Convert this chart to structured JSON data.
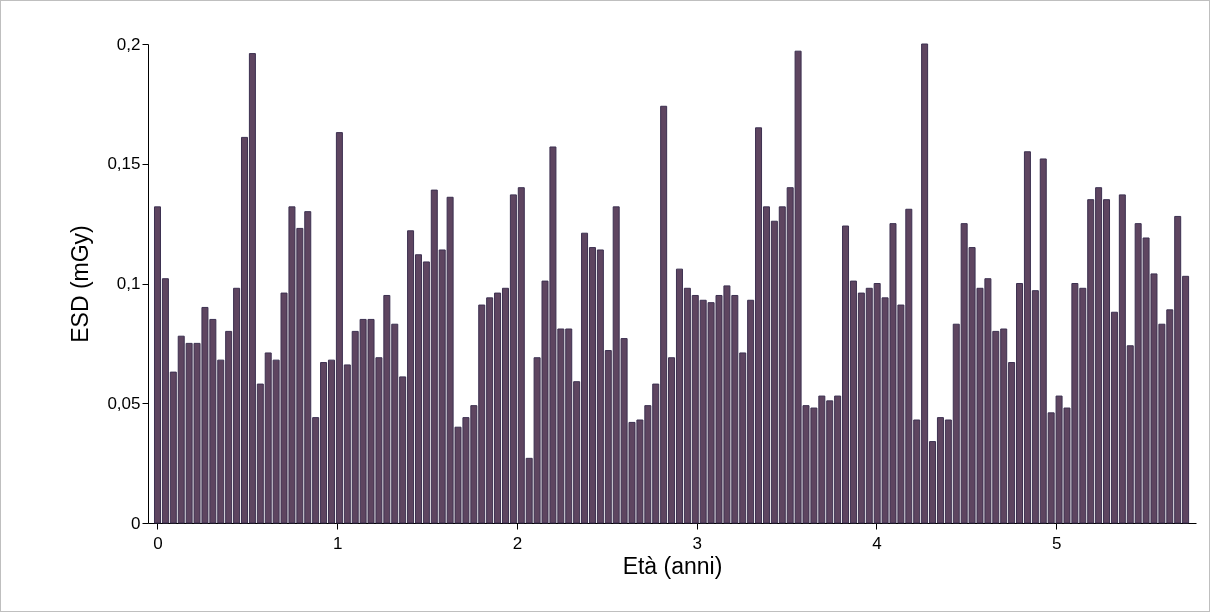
{
  "chart_data": {
    "type": "bar",
    "xlabel": "Età (anni)",
    "ylabel": "ESD (mGy)",
    "x": [
      0,
      0.044,
      0.088,
      0.132,
      0.176,
      0.22,
      0.264,
      0.308,
      0.352,
      0.396,
      0.44,
      0.484,
      0.528,
      0.572,
      0.616,
      0.66,
      0.704,
      0.748,
      0.792,
      0.836,
      0.88,
      0.924,
      0.968,
      1.012,
      1.056,
      1.1,
      1.144,
      1.188,
      1.232,
      1.276,
      1.32,
      1.364,
      1.408,
      1.452,
      1.496,
      1.54,
      1.584,
      1.628,
      1.672,
      1.716,
      1.76,
      1.804,
      1.848,
      1.892,
      1.936,
      1.98,
      2.024,
      2.068,
      2.112,
      2.156,
      2.2,
      2.244,
      2.288,
      2.332,
      2.376,
      2.42,
      2.464,
      2.508,
      2.552,
      2.596,
      2.64,
      2.684,
      2.728,
      2.772,
      2.816,
      2.86,
      2.904,
      2.948,
      2.992,
      3.036,
      3.08,
      3.124,
      3.168,
      3.212,
      3.256,
      3.3,
      3.344,
      3.388,
      3.432,
      3.476,
      3.52,
      3.564,
      3.608,
      3.652,
      3.696,
      3.74,
      3.784,
      3.828,
      3.872,
      3.916,
      3.96,
      4.004,
      4.048,
      4.092,
      4.136,
      4.18,
      4.224,
      4.268,
      4.312,
      4.356,
      4.4,
      4.444,
      4.488,
      4.532,
      4.576,
      4.62,
      4.664,
      4.708,
      4.752,
      4.796,
      4.84,
      4.884,
      4.928,
      4.972,
      5.016,
      5.06,
      5.104,
      5.148,
      5.192,
      5.236,
      5.28,
      5.324,
      5.368,
      5.412,
      5.456,
      5.5,
      5.544,
      5.588,
      5.632,
      5.676,
      5.72
    ],
    "series": [
      {
        "color": "#5e4560",
        "values": [
          0.132,
          0.102,
          0.063,
          0.078,
          0.075,
          0.075,
          0.09,
          0.085,
          0.068,
          0.08,
          0.098,
          0.161,
          0.196,
          0.058,
          0.071,
          0.068,
          0.096,
          0.132,
          0.123,
          0.13,
          0.044,
          0.067,
          0.068,
          0.163,
          0.066,
          0.08,
          0.085,
          0.085,
          0.069,
          0.095,
          0.083,
          0.061,
          0.122,
          0.112,
          0.109,
          0.139,
          0.114,
          0.136,
          0.04,
          0.044,
          0.049,
          0.091,
          0.094,
          0.096,
          0.098,
          0.137,
          0.14,
          0.027,
          0.069,
          0.101,
          0.157,
          0.081,
          0.081,
          0.059,
          0.121,
          0.115,
          0.114,
          0.072,
          0.132,
          0.077,
          0.042,
          0.043,
          0.049,
          0.058,
          0.174,
          0.069,
          0.106,
          0.098,
          0.095,
          0.093,
          0.092,
          0.095,
          0.099,
          0.095,
          0.071,
          0.093,
          0.165,
          0.132,
          0.126,
          0.132,
          0.14,
          0.197,
          0.049,
          0.048,
          0.053,
          0.051,
          0.053,
          0.124,
          0.101,
          0.096,
          0.098,
          0.1,
          0.094,
          0.125,
          0.091,
          0.131,
          0.043,
          0.2,
          0.034,
          0.044,
          0.043,
          0.083,
          0.125,
          0.115,
          0.098,
          0.102,
          0.08,
          0.081,
          0.067,
          0.1,
          0.155,
          0.097,
          0.152,
          0.046,
          0.053,
          0.048,
          0.1,
          0.098,
          0.135,
          0.14,
          0.135,
          0.088,
          0.137,
          0.074,
          0.125,
          0.119,
          0.104,
          0.083,
          0.089,
          0.128,
          0.103
        ]
      }
    ],
    "xlim": [
      -0.025,
      5.75
    ],
    "xticks": [
      0,
      1,
      2,
      3,
      4,
      5
    ],
    "ylim": [
      0,
      0.2
    ],
    "yticks": [
      0,
      {
        "value": 0.05,
        "label": "0,05"
      },
      {
        "value": 0.1,
        "label": "0,1"
      },
      {
        "value": 0.15,
        "label": "0,15"
      },
      {
        "value": 0.2,
        "label": "0,2"
      }
    ],
    "grid": false
  }
}
